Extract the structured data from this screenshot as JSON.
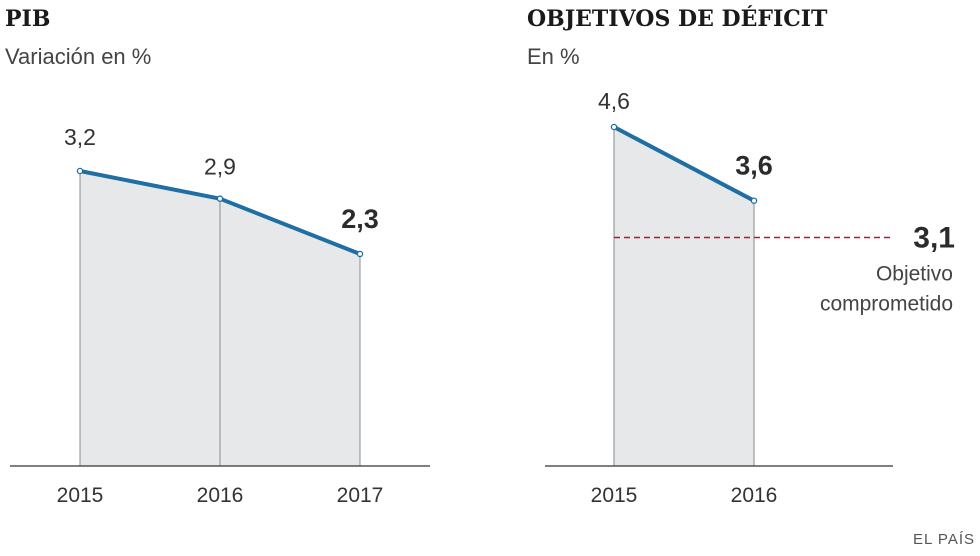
{
  "chart_data": [
    {
      "type": "area",
      "title": "PIB",
      "subtitle": "Variación en %",
      "categories": [
        "2015",
        "2016",
        "2017"
      ],
      "values": [
        3.2,
        2.9,
        2.3
      ],
      "value_labels": [
        "3,2",
        "2,9",
        "2,3"
      ],
      "highlight_last": true,
      "ylim": [
        0,
        3.2
      ],
      "grid": false,
      "line_color": "#1f6fa3",
      "area_color": "#e6e8e9"
    },
    {
      "type": "area",
      "title": "OBJETIVOS DE DÉFICIT",
      "subtitle": "En %",
      "categories": [
        "2015",
        "2016"
      ],
      "values": [
        4.6,
        3.6
      ],
      "value_labels": [
        "4,6",
        "3,6"
      ],
      "highlight_last": true,
      "ylim": [
        0,
        4.6
      ],
      "grid": false,
      "line_color": "#1f6fa3",
      "area_color": "#e6e8e9",
      "reference_line": {
        "value": 3.1,
        "value_label": "3,1",
        "label_lines": [
          "Objetivo",
          "comprometido"
        ],
        "color": "#c8102e"
      }
    }
  ],
  "source": "EL PAÍS"
}
